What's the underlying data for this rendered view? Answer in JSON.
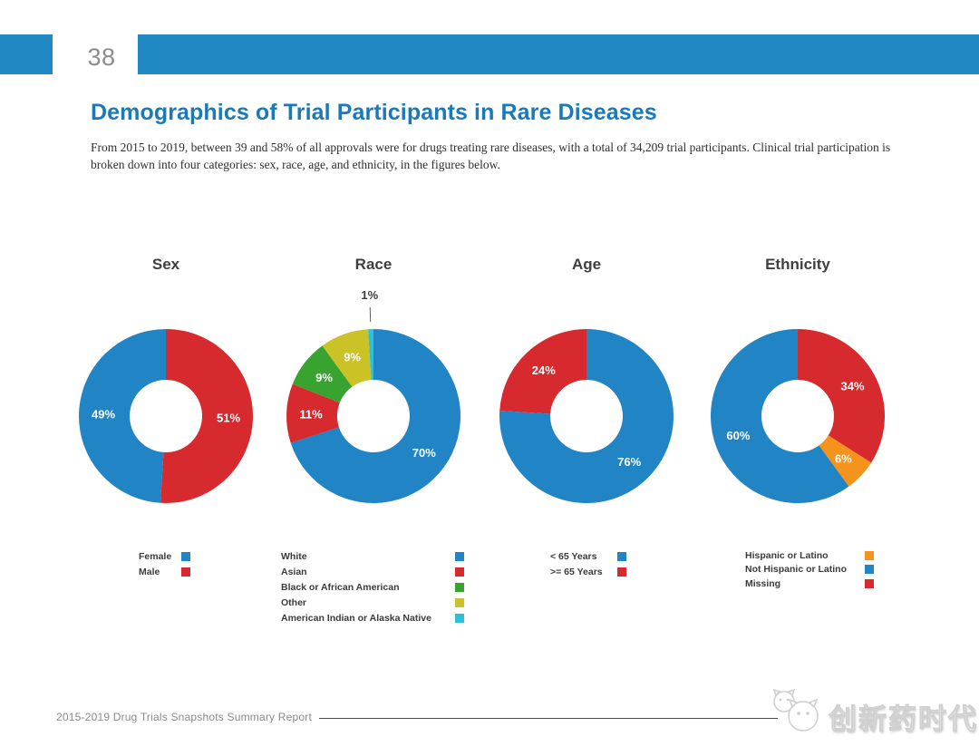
{
  "page_number": "38",
  "colors": {
    "header_bar": "#2089c4",
    "title_text": "#1a7ab8",
    "blue": "#2184c4",
    "red": "#d62a2e",
    "green": "#38a32f",
    "olive": "#cbc228",
    "cyan": "#2fc0d6",
    "orange": "#f6931d"
  },
  "header": {
    "title": "Demographics of Trial Participants in Rare Diseases",
    "intro": "From 2015 to 2019, between 39 and 58% of all approvals were for drugs treating rare diseases, with a total of 34,209 trial participants. Clinical trial participation is broken down into four categories: sex, race, age, and ethnicity, in the figures below."
  },
  "chart_data": [
    {
      "type": "pie",
      "donut": true,
      "title": "Sex",
      "start_angle": "top",
      "direction": "clockwise",
      "value_format": "percent",
      "legend_position": "below",
      "slices": [
        {
          "label": "Male",
          "value": 51,
          "color": "#d62a2e"
        },
        {
          "label": "Female",
          "value": 49,
          "color": "#2184c4"
        }
      ],
      "legend": [
        "Female",
        "Male"
      ]
    },
    {
      "type": "pie",
      "donut": true,
      "title": "Race",
      "start_angle": "top",
      "direction": "clockwise",
      "value_format": "percent",
      "legend_position": "below",
      "slices": [
        {
          "label": "White",
          "value": 70,
          "color": "#2184c4"
        },
        {
          "label": "Asian",
          "value": 11,
          "color": "#d62a2e"
        },
        {
          "label": "Black or African American",
          "value": 9,
          "color": "#38a32f"
        },
        {
          "label": "Other",
          "value": 9,
          "color": "#cbc228"
        },
        {
          "label": "American Indian or Alaska Native",
          "value": 1,
          "color": "#2fc0d6"
        }
      ],
      "legend": [
        "White",
        "Asian",
        "Black or African American",
        "Other",
        "American Indian or Alaska Native"
      ]
    },
    {
      "type": "pie",
      "donut": true,
      "title": "Age",
      "start_angle": "top",
      "direction": "clockwise",
      "value_format": "percent",
      "legend_position": "below",
      "slices": [
        {
          "label": "< 65 Years",
          "value": 76,
          "color": "#2184c4"
        },
        {
          "label": ">= 65 Years",
          "value": 24,
          "color": "#d62a2e"
        }
      ],
      "legend": [
        "< 65 Years",
        ">= 65 Years"
      ]
    },
    {
      "type": "pie",
      "donut": true,
      "title": "Ethnicity",
      "start_angle": "top",
      "direction": "clockwise",
      "value_format": "percent",
      "legend_position": "below",
      "slices": [
        {
          "label": "Missing",
          "value": 34,
          "color": "#d62a2e"
        },
        {
          "label": "Hispanic or Latino",
          "value": 6,
          "color": "#f6931d"
        },
        {
          "label": "Not Hispanic or Latino",
          "value": 60,
          "color": "#2184c4"
        }
      ],
      "legend": [
        "Hispanic or Latino",
        "Not Hispanic or Latino",
        "Missing"
      ]
    }
  ],
  "footer": {
    "report_label": "2015-2019 Drug Trials Snapshots Summary Report",
    "watermark_text": "创新药时代"
  }
}
